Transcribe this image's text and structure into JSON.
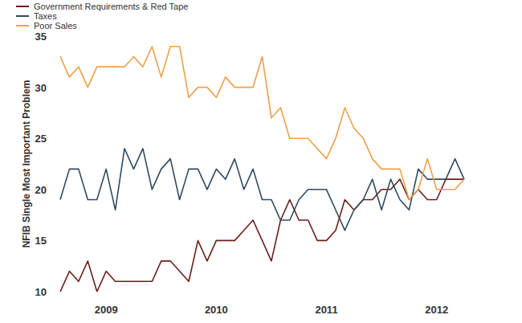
{
  "chart_data": {
    "type": "line",
    "y_label": "NFIB Single Most Important Problem",
    "categories": [
      null,
      null,
      null,
      null,
      null,
      "2009",
      null,
      null,
      null,
      null,
      null,
      null,
      null,
      null,
      null,
      null,
      null,
      "2010",
      null,
      null,
      null,
      null,
      null,
      null,
      null,
      null,
      null,
      null,
      null,
      "2011",
      null,
      null,
      null,
      null,
      null,
      null,
      null,
      null,
      null,
      null,
      null,
      "2012",
      null,
      null,
      null
    ],
    "series": [
      {
        "name": "Government Requirements & Red Tape",
        "color": "#6b1f1a",
        "values": [
          10,
          12,
          11,
          13,
          10,
          12,
          11,
          11,
          11,
          11,
          11,
          13,
          13,
          12,
          11,
          15,
          13,
          15,
          15,
          15,
          16,
          17,
          15,
          13,
          17,
          19,
          17,
          17,
          15,
          15,
          16,
          19,
          18,
          19,
          19,
          20,
          20,
          21,
          19,
          20,
          19,
          19,
          21,
          21,
          21
        ]
      },
      {
        "name": "Taxes",
        "color": "#2f4b5f",
        "values": [
          19,
          22,
          22,
          19,
          19,
          22,
          18,
          24,
          22,
          24,
          20,
          22,
          23,
          19,
          22,
          22,
          20,
          22,
          21,
          23,
          20,
          22,
          19,
          19,
          17,
          17,
          19,
          20,
          20,
          20,
          18,
          16,
          18,
          19,
          21,
          18,
          21,
          19,
          18,
          22,
          21,
          21,
          21,
          23,
          21
        ]
      },
      {
        "name": "Poor Sales",
        "color": "#eea04a",
        "values": [
          33,
          31,
          32,
          30,
          32,
          32,
          32,
          32,
          33,
          32,
          34,
          31,
          34,
          34,
          29,
          30,
          30,
          29,
          31,
          30,
          30,
          30,
          33,
          27,
          28,
          25,
          25,
          25,
          24,
          23,
          25,
          28,
          26,
          25,
          23,
          22,
          22,
          22,
          19,
          20,
          23,
          20,
          20,
          20,
          21
        ]
      }
    ],
    "ylim": [
      10,
      35
    ],
    "yticks": [
      10,
      15,
      20,
      25,
      30,
      35
    ],
    "grid": false,
    "legend": "top-left"
  }
}
